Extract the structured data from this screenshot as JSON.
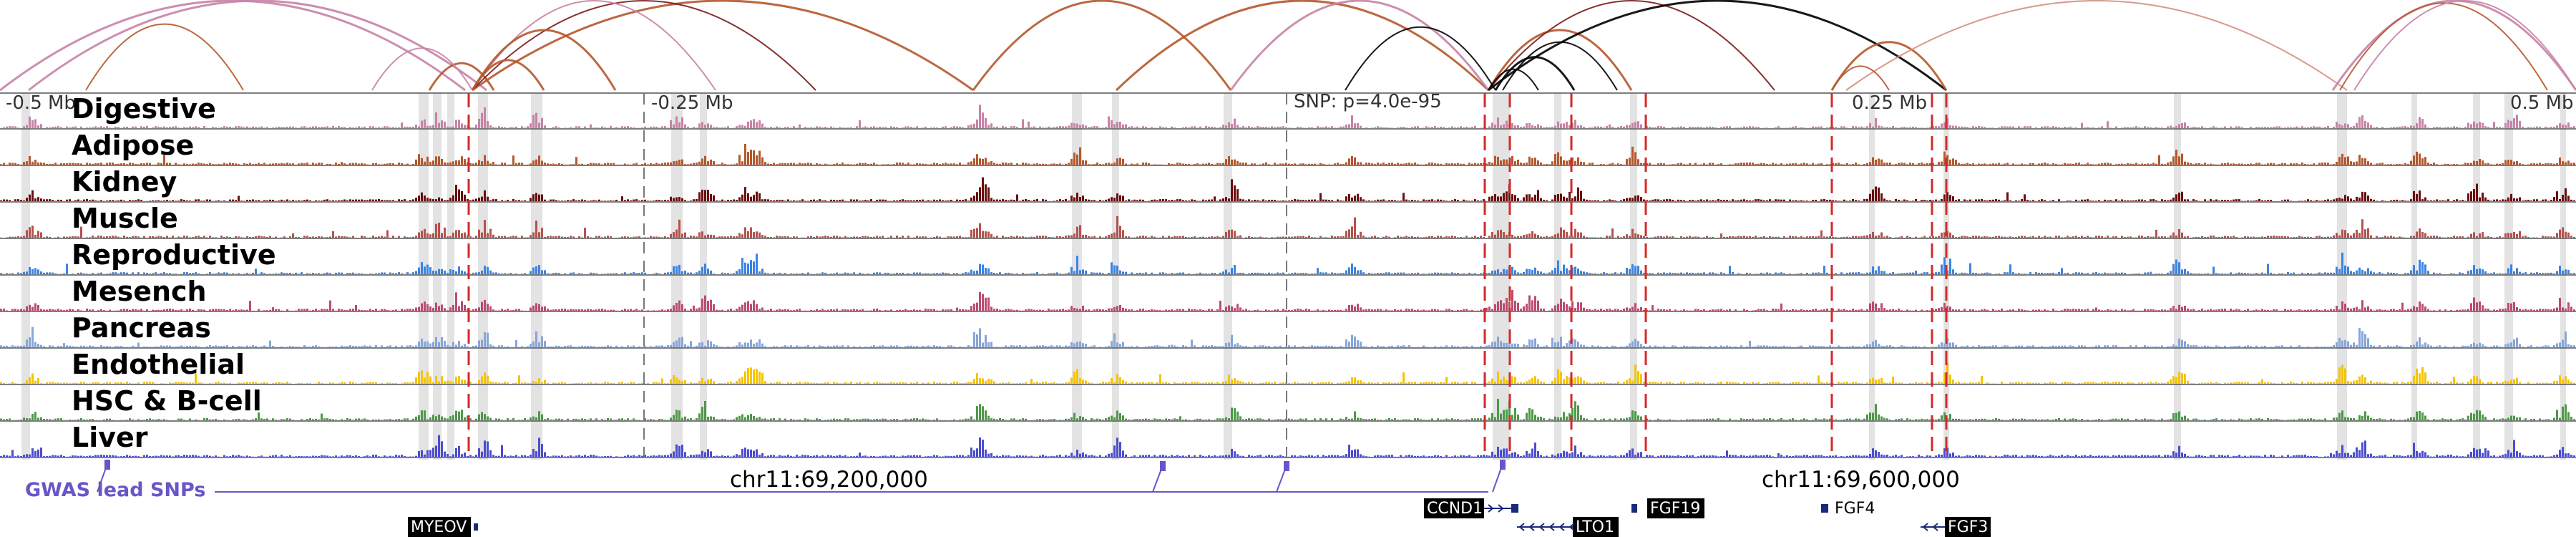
{
  "browser": {
    "axis_ticks": [
      {
        "label": "-0.5 Mb",
        "pos": -0.5
      },
      {
        "label": "-0.25 Mb",
        "pos": -0.25
      },
      {
        "label": "0.25 Mb",
        "pos": 0.25
      },
      {
        "label": "0.5 Mb",
        "pos": 0.5
      }
    ],
    "snp_label": "SNP: p=4.0e-95",
    "coordinates": [
      "chr11:69,200,000",
      "chr11:69,600,000"
    ],
    "gwas_label": "GWAS lead SNPs",
    "tracks": [
      {
        "name": "Digestive",
        "color": "#c883a6"
      },
      {
        "name": "Adipose",
        "color": "#b5582c"
      },
      {
        "name": "Kidney",
        "color": "#6b0f0f"
      },
      {
        "name": "Muscle",
        "color": "#b6524d"
      },
      {
        "name": "Reproductive",
        "color": "#3a84e6"
      },
      {
        "name": "Mesench",
        "color": "#bb4d6f"
      },
      {
        "name": "Pancreas",
        "color": "#88a6d8"
      },
      {
        "name": "Endothelial",
        "color": "#f5c400"
      },
      {
        "name": "HSC & B-cell",
        "color": "#4d9a48"
      },
      {
        "name": "Liver",
        "color": "#4c4dd0"
      }
    ],
    "genes": [
      {
        "name": "MYEOV",
        "style": "box"
      },
      {
        "name": "CCND1",
        "style": "box"
      },
      {
        "name": "LTO1",
        "style": "box"
      },
      {
        "name": "FGF19",
        "style": "box"
      },
      {
        "name": "FGF4",
        "style": "plain"
      },
      {
        "name": "FGF3",
        "style": "box"
      }
    ]
  }
}
